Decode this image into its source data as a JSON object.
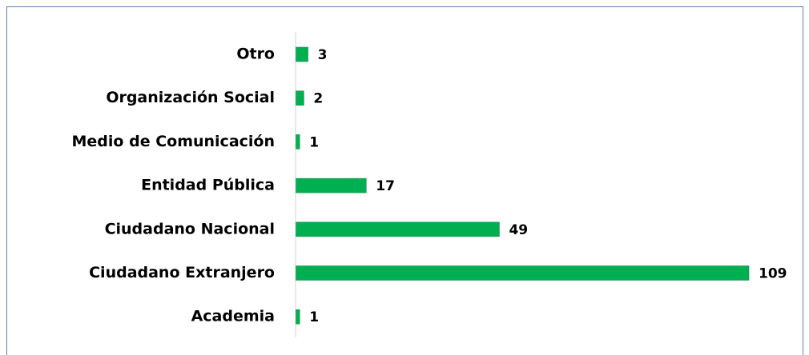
{
  "chart_data": {
    "type": "bar",
    "orientation": "horizontal",
    "categories": [
      "Otro",
      "Organización Social",
      "Medio de Comunicación",
      "Entidad Pública",
      "Ciudadano Nacional",
      "Ciudadano Extranjero",
      "Academia"
    ],
    "values": [
      3,
      2,
      1,
      17,
      49,
      109,
      1
    ],
    "color": "#00b050"
  }
}
